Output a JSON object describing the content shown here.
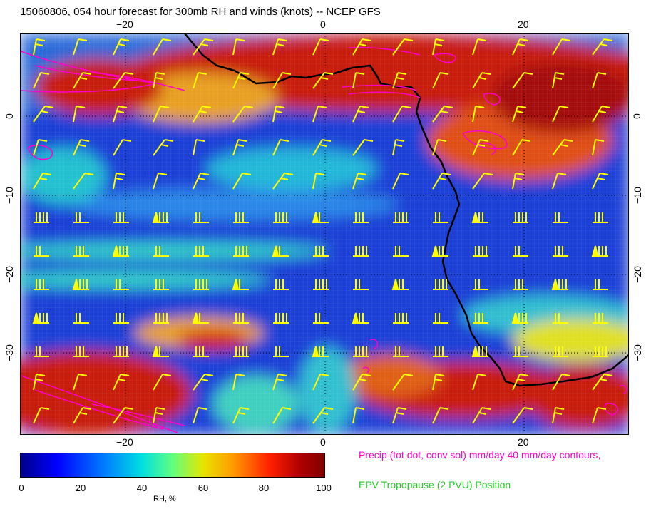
{
  "title": "15060806, 054 hour forecast for 300mb RH and winds (knots) -- NCEP GFS",
  "axes": {
    "top_labels": [
      "−20",
      "0",
      "20"
    ],
    "bottom_labels": [
      "−20",
      "0",
      "20"
    ],
    "left_labels": [
      "0",
      "−10",
      "−20",
      "−30"
    ],
    "right_labels": [
      "0",
      "−10",
      "−20",
      "−30"
    ]
  },
  "colorbar": {
    "ticks": [
      "0",
      "20",
      "40",
      "60",
      "80",
      "100"
    ],
    "label": "RH, %"
  },
  "legend": {
    "precip": "Precip (tot dot, conv sol) mm/day 40 mm/day contours,",
    "epv": "EPV Tropopause (2 PVU) Position"
  },
  "colors": {
    "wind_barbs": "#ffff00",
    "precip_contours": "#ff00cc",
    "coastline": "#000000",
    "epv_text": "#22cc22"
  }
}
